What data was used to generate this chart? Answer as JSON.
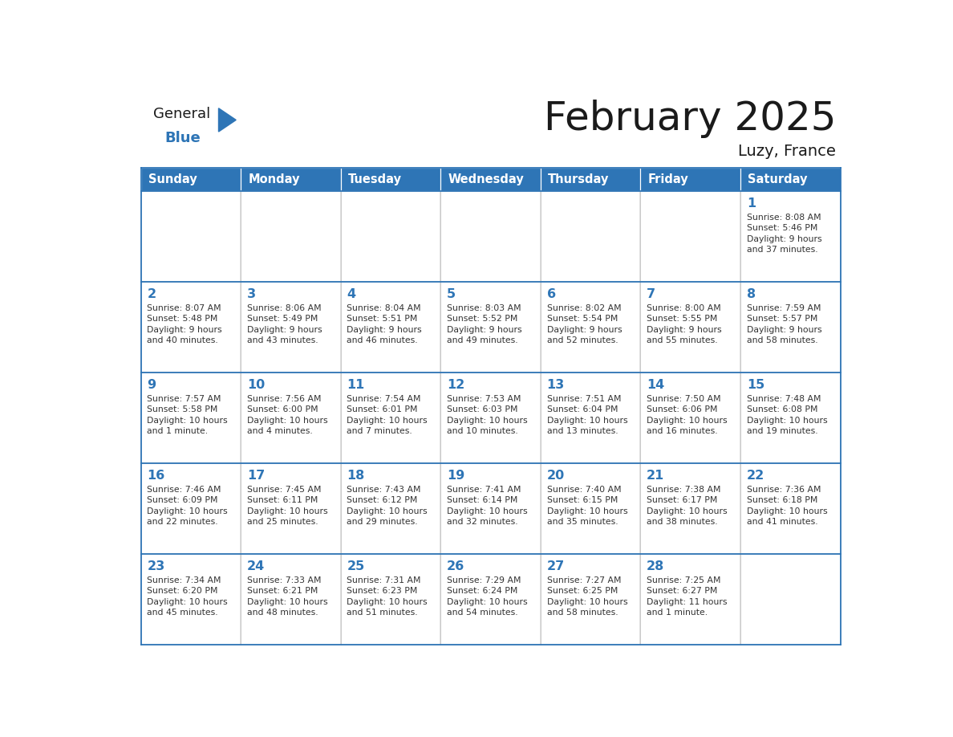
{
  "title": "February 2025",
  "subtitle": "Luzy, France",
  "header_bg": "#2E75B6",
  "header_text_color": "#FFFFFF",
  "border_color": "#2E75B6",
  "cell_border_color": "#AAAAAA",
  "days_of_week": [
    "Sunday",
    "Monday",
    "Tuesday",
    "Wednesday",
    "Thursday",
    "Friday",
    "Saturday"
  ],
  "title_color": "#1a1a1a",
  "subtitle_color": "#1a1a1a",
  "day_number_color": "#2E75B6",
  "cell_text_color": "#333333",
  "logo_general_color": "#1a1a1a",
  "logo_blue_color": "#2E75B6",
  "cell_bg": "#FFFFFF",
  "calendar_data": [
    [
      null,
      null,
      null,
      null,
      null,
      null,
      {
        "day": 1,
        "sunrise": "8:08 AM",
        "sunset": "5:46 PM",
        "daylight_line1": "Daylight: 9 hours",
        "daylight_line2": "and 37 minutes."
      }
    ],
    [
      {
        "day": 2,
        "sunrise": "8:07 AM",
        "sunset": "5:48 PM",
        "daylight_line1": "Daylight: 9 hours",
        "daylight_line2": "and 40 minutes."
      },
      {
        "day": 3,
        "sunrise": "8:06 AM",
        "sunset": "5:49 PM",
        "daylight_line1": "Daylight: 9 hours",
        "daylight_line2": "and 43 minutes."
      },
      {
        "day": 4,
        "sunrise": "8:04 AM",
        "sunset": "5:51 PM",
        "daylight_line1": "Daylight: 9 hours",
        "daylight_line2": "and 46 minutes."
      },
      {
        "day": 5,
        "sunrise": "8:03 AM",
        "sunset": "5:52 PM",
        "daylight_line1": "Daylight: 9 hours",
        "daylight_line2": "and 49 minutes."
      },
      {
        "day": 6,
        "sunrise": "8:02 AM",
        "sunset": "5:54 PM",
        "daylight_line1": "Daylight: 9 hours",
        "daylight_line2": "and 52 minutes."
      },
      {
        "day": 7,
        "sunrise": "8:00 AM",
        "sunset": "5:55 PM",
        "daylight_line1": "Daylight: 9 hours",
        "daylight_line2": "and 55 minutes."
      },
      {
        "day": 8,
        "sunrise": "7:59 AM",
        "sunset": "5:57 PM",
        "daylight_line1": "Daylight: 9 hours",
        "daylight_line2": "and 58 minutes."
      }
    ],
    [
      {
        "day": 9,
        "sunrise": "7:57 AM",
        "sunset": "5:58 PM",
        "daylight_line1": "Daylight: 10 hours",
        "daylight_line2": "and 1 minute."
      },
      {
        "day": 10,
        "sunrise": "7:56 AM",
        "sunset": "6:00 PM",
        "daylight_line1": "Daylight: 10 hours",
        "daylight_line2": "and 4 minutes."
      },
      {
        "day": 11,
        "sunrise": "7:54 AM",
        "sunset": "6:01 PM",
        "daylight_line1": "Daylight: 10 hours",
        "daylight_line2": "and 7 minutes."
      },
      {
        "day": 12,
        "sunrise": "7:53 AM",
        "sunset": "6:03 PM",
        "daylight_line1": "Daylight: 10 hours",
        "daylight_line2": "and 10 minutes."
      },
      {
        "day": 13,
        "sunrise": "7:51 AM",
        "sunset": "6:04 PM",
        "daylight_line1": "Daylight: 10 hours",
        "daylight_line2": "and 13 minutes."
      },
      {
        "day": 14,
        "sunrise": "7:50 AM",
        "sunset": "6:06 PM",
        "daylight_line1": "Daylight: 10 hours",
        "daylight_line2": "and 16 minutes."
      },
      {
        "day": 15,
        "sunrise": "7:48 AM",
        "sunset": "6:08 PM",
        "daylight_line1": "Daylight: 10 hours",
        "daylight_line2": "and 19 minutes."
      }
    ],
    [
      {
        "day": 16,
        "sunrise": "7:46 AM",
        "sunset": "6:09 PM",
        "daylight_line1": "Daylight: 10 hours",
        "daylight_line2": "and 22 minutes."
      },
      {
        "day": 17,
        "sunrise": "7:45 AM",
        "sunset": "6:11 PM",
        "daylight_line1": "Daylight: 10 hours",
        "daylight_line2": "and 25 minutes."
      },
      {
        "day": 18,
        "sunrise": "7:43 AM",
        "sunset": "6:12 PM",
        "daylight_line1": "Daylight: 10 hours",
        "daylight_line2": "and 29 minutes."
      },
      {
        "day": 19,
        "sunrise": "7:41 AM",
        "sunset": "6:14 PM",
        "daylight_line1": "Daylight: 10 hours",
        "daylight_line2": "and 32 minutes."
      },
      {
        "day": 20,
        "sunrise": "7:40 AM",
        "sunset": "6:15 PM",
        "daylight_line1": "Daylight: 10 hours",
        "daylight_line2": "and 35 minutes."
      },
      {
        "day": 21,
        "sunrise": "7:38 AM",
        "sunset": "6:17 PM",
        "daylight_line1": "Daylight: 10 hours",
        "daylight_line2": "and 38 minutes."
      },
      {
        "day": 22,
        "sunrise": "7:36 AM",
        "sunset": "6:18 PM",
        "daylight_line1": "Daylight: 10 hours",
        "daylight_line2": "and 41 minutes."
      }
    ],
    [
      {
        "day": 23,
        "sunrise": "7:34 AM",
        "sunset": "6:20 PM",
        "daylight_line1": "Daylight: 10 hours",
        "daylight_line2": "and 45 minutes."
      },
      {
        "day": 24,
        "sunrise": "7:33 AM",
        "sunset": "6:21 PM",
        "daylight_line1": "Daylight: 10 hours",
        "daylight_line2": "and 48 minutes."
      },
      {
        "day": 25,
        "sunrise": "7:31 AM",
        "sunset": "6:23 PM",
        "daylight_line1": "Daylight: 10 hours",
        "daylight_line2": "and 51 minutes."
      },
      {
        "day": 26,
        "sunrise": "7:29 AM",
        "sunset": "6:24 PM",
        "daylight_line1": "Daylight: 10 hours",
        "daylight_line2": "and 54 minutes."
      },
      {
        "day": 27,
        "sunrise": "7:27 AM",
        "sunset": "6:25 PM",
        "daylight_line1": "Daylight: 10 hours",
        "daylight_line2": "and 58 minutes."
      },
      {
        "day": 28,
        "sunrise": "7:25 AM",
        "sunset": "6:27 PM",
        "daylight_line1": "Daylight: 11 hours",
        "daylight_line2": "and 1 minute."
      },
      null
    ]
  ]
}
